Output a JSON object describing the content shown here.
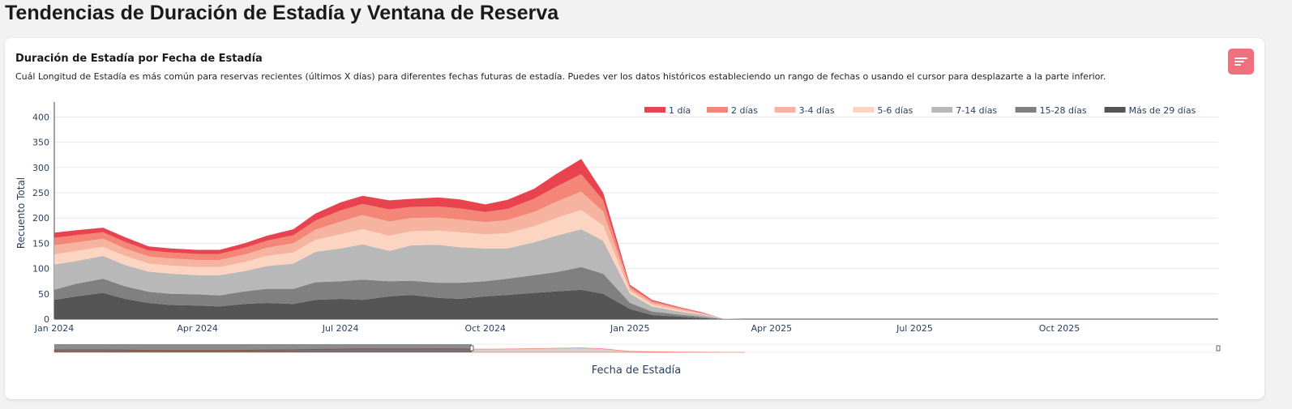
{
  "page": {
    "title": "Tendencias de Duración de Estadía y Ventana de Reserva"
  },
  "card": {
    "title": "Duración de Estadía por Fecha de Estadía",
    "subtitle": "Cuál Longitud de Estadía es más común para reservas recientes (últimos X días) para diferentes fechas futuras de estadía. Puedes ver los datos históricos estableciendo un rango de fechas o usando el cursor para desplazarte a la parte inferior.",
    "menu_icon": "menu-lines-icon"
  },
  "colors": {
    "accent": "#f0717d"
  },
  "chart_data": {
    "type": "area",
    "stacked": true,
    "xlabel": "Fecha de Estadía",
    "ylabel": "Recuento Total",
    "ylim": [
      0,
      420
    ],
    "xlim": [
      "2024-01-01",
      "2026-01-10"
    ],
    "yticks": [
      0,
      50,
      100,
      150,
      200,
      250,
      300,
      350,
      400
    ],
    "xticks": [
      {
        "date": "2024-01-01",
        "label": "Jan 2024"
      },
      {
        "date": "2024-04-01",
        "label": "Apr 2024"
      },
      {
        "date": "2024-07-01",
        "label": "Jul 2024"
      },
      {
        "date": "2024-10-01",
        "label": "Oct 2024"
      },
      {
        "date": "2025-01-01",
        "label": "Jan 2025"
      },
      {
        "date": "2025-04-01",
        "label": "Apr 2025"
      },
      {
        "date": "2025-07-01",
        "label": "Jul 2025"
      },
      {
        "date": "2025-10-01",
        "label": "Oct 2025"
      }
    ],
    "grid": true,
    "legend_position": "top-right",
    "range_slider": true,
    "x": [
      "2024-01-01",
      "2024-01-15",
      "2024-02-01",
      "2024-02-15",
      "2024-03-01",
      "2024-03-15",
      "2024-04-01",
      "2024-04-15",
      "2024-05-01",
      "2024-05-15",
      "2024-06-01",
      "2024-06-15",
      "2024-07-01",
      "2024-07-15",
      "2024-08-01",
      "2024-08-15",
      "2024-09-01",
      "2024-09-15",
      "2024-10-01",
      "2024-10-15",
      "2024-11-01",
      "2024-11-15",
      "2024-12-01",
      "2024-12-15",
      "2025-01-01",
      "2025-01-15",
      "2025-02-01",
      "2025-02-15",
      "2025-03-01",
      "2025-03-15"
    ],
    "series": [
      {
        "name": "Más de 29 días",
        "color": "#555555",
        "values": [
          38,
          45,
          52,
          40,
          32,
          28,
          27,
          25,
          30,
          32,
          30,
          38,
          40,
          38,
          45,
          48,
          42,
          40,
          45,
          48,
          52,
          55,
          58,
          50,
          20,
          8,
          5,
          2,
          0,
          0
        ]
      },
      {
        "name": "15-28 días",
        "color": "#808080",
        "values": [
          20,
          25,
          28,
          25,
          22,
          22,
          22,
          22,
          25,
          28,
          30,
          35,
          35,
          40,
          30,
          28,
          30,
          32,
          30,
          32,
          35,
          38,
          45,
          40,
          12,
          7,
          4,
          3,
          0,
          0
        ]
      },
      {
        "name": "7-14 días",
        "color": "#b8b8b8",
        "values": [
          50,
          45,
          45,
          42,
          40,
          40,
          38,
          40,
          40,
          45,
          50,
          60,
          65,
          70,
          60,
          70,
          75,
          70,
          65,
          60,
          65,
          72,
          75,
          65,
          18,
          10,
          6,
          4,
          1,
          0
        ]
      },
      {
        "name": "5-6 días",
        "color": "#fcd5c2",
        "values": [
          20,
          20,
          18,
          18,
          16,
          16,
          16,
          16,
          18,
          20,
          22,
          24,
          28,
          30,
          30,
          28,
          28,
          30,
          28,
          30,
          32,
          35,
          38,
          30,
          6,
          4,
          3,
          1,
          0,
          0
        ]
      },
      {
        "name": "3-4 días",
        "color": "#f5b3a0",
        "values": [
          18,
          17,
          16,
          15,
          14,
          14,
          14,
          14,
          15,
          16,
          18,
          20,
          25,
          28,
          28,
          26,
          26,
          25,
          24,
          26,
          28,
          32,
          36,
          28,
          5,
          4,
          3,
          2,
          0,
          0
        ]
      },
      {
        "name": "2 días",
        "color": "#f38677",
        "values": [
          15,
          14,
          13,
          13,
          12,
          12,
          12,
          12,
          13,
          14,
          16,
          18,
          22,
          22,
          24,
          22,
          22,
          22,
          20,
          22,
          26,
          30,
          35,
          22,
          4,
          3,
          2,
          1,
          0,
          0
        ]
      },
      {
        "name": "1 día",
        "color": "#e8434f",
        "values": [
          10,
          10,
          9,
          9,
          8,
          8,
          8,
          8,
          9,
          10,
          12,
          14,
          16,
          16,
          18,
          16,
          18,
          18,
          15,
          18,
          20,
          25,
          30,
          15,
          3,
          2,
          1,
          1,
          0,
          0
        ]
      }
    ],
    "legend_order": [
      "1 día",
      "2 días",
      "3-4 días",
      "5-6 días",
      "7-14 días",
      "15-28 días",
      "Más de 29 días"
    ]
  }
}
